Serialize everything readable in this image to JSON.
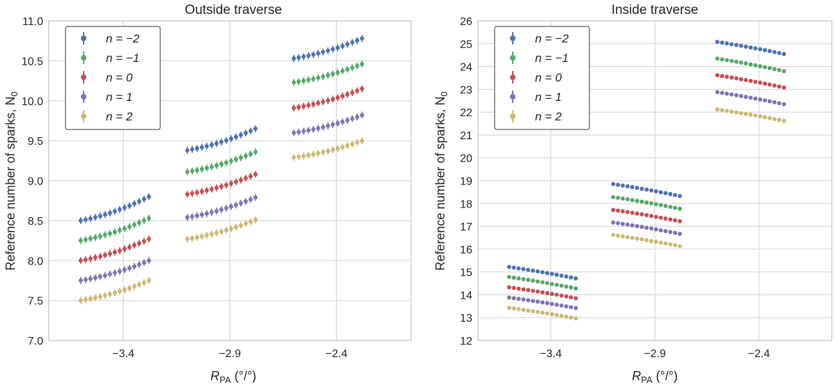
{
  "chart_data": [
    {
      "type": "scatter",
      "title": "Outside traverse",
      "xlabel": "R_PA (°/°)",
      "xlabel_main": "R",
      "xlabel_sub": "PA",
      "xlabel_units": " (°/°)",
      "ylabel": "Reference number of sparks, N_0",
      "ylabel_main": "Reference number of sparks, N",
      "ylabel_sub": "0",
      "xlim": [
        -3.75,
        -2.05
      ],
      "ylim": [
        7.0,
        11.0
      ],
      "xticks": [
        -3.4,
        -2.9,
        -2.4
      ],
      "xtick_labels": [
        "−3.4",
        "−2.9",
        "−2.4"
      ],
      "yticks": [
        7.0,
        7.5,
        8.0,
        8.5,
        9.0,
        9.5,
        10.0,
        10.5,
        11.0
      ],
      "ytick_labels": [
        "7.0",
        "7.5",
        "8.0",
        "8.5",
        "9.0",
        "9.5",
        "10.0",
        "10.5",
        "11.0"
      ],
      "groups": [
        {
          "x_start": -3.6,
          "x_end": -3.28,
          "points": 15
        },
        {
          "x_start": -3.1,
          "x_end": -2.78,
          "points": 15
        },
        {
          "x_start": -2.6,
          "x_end": -2.28,
          "points": 15
        }
      ],
      "legend_position": "top-left",
      "series": [
        {
          "name": "n = −2",
          "color": "#4c72b0",
          "groups": [
            [
              8.5,
              8.8
            ],
            [
              9.38,
              9.65
            ],
            [
              10.53,
              10.78
            ]
          ]
        },
        {
          "name": "n = −1",
          "color": "#55a868",
          "groups": [
            [
              8.25,
              8.53
            ],
            [
              9.11,
              9.36
            ],
            [
              10.23,
              10.46
            ]
          ]
        },
        {
          "name": "n = 0",
          "color": "#c44e52",
          "groups": [
            [
              8.0,
              8.27
            ],
            [
              8.83,
              9.08
            ],
            [
              9.91,
              10.15
            ]
          ]
        },
        {
          "name": "n = 1",
          "color": "#8172b2",
          "groups": [
            [
              7.75,
              8.0
            ],
            [
              8.54,
              8.79
            ],
            [
              9.6,
              9.82
            ]
          ]
        },
        {
          "name": "n = 2",
          "color": "#ccb974",
          "groups": [
            [
              7.5,
              7.75
            ],
            [
              8.27,
              8.51
            ],
            [
              9.29,
              9.5
            ]
          ]
        }
      ]
    },
    {
      "type": "scatter",
      "title": "Inside traverse",
      "xlabel": "R_PA (°/°)",
      "xlabel_main": "R",
      "xlabel_sub": "PA",
      "xlabel_units": " (°/°)",
      "ylabel": "Reference number of sparks, N_0",
      "ylabel_main": "Reference number of sparks, N",
      "ylabel_sub": "0",
      "xlim": [
        -3.75,
        -2.05
      ],
      "ylim": [
        12,
        26
      ],
      "xticks": [
        -3.4,
        -2.9,
        -2.4
      ],
      "xtick_labels": [
        "−3.4",
        "−2.9",
        "−2.4"
      ],
      "yticks": [
        12,
        13,
        14,
        15,
        16,
        17,
        18,
        19,
        20,
        21,
        22,
        23,
        24,
        25,
        26
      ],
      "ytick_labels": [
        "12",
        "13",
        "14",
        "15",
        "16",
        "17",
        "18",
        "19",
        "20",
        "21",
        "22",
        "23",
        "24",
        "25",
        "26"
      ],
      "groups": [
        {
          "x_start": -3.6,
          "x_end": -3.28,
          "points": 15
        },
        {
          "x_start": -3.1,
          "x_end": -2.78,
          "points": 15
        },
        {
          "x_start": -2.6,
          "x_end": -2.28,
          "points": 15
        }
      ],
      "legend_position": "top-left",
      "series": [
        {
          "name": "n = −2",
          "color": "#4c72b0",
          "groups": [
            [
              15.22,
              14.72
            ],
            [
              18.85,
              18.33
            ],
            [
              25.08,
              24.55
            ]
          ]
        },
        {
          "name": "n = −1",
          "color": "#55a868",
          "groups": [
            [
              14.78,
              14.28
            ],
            [
              18.28,
              17.77
            ],
            [
              24.35,
              23.8
            ]
          ]
        },
        {
          "name": "n = 0",
          "color": "#c44e52",
          "groups": [
            [
              14.33,
              13.85
            ],
            [
              17.72,
              17.22
            ],
            [
              23.62,
              23.08
            ]
          ]
        },
        {
          "name": "n = 1",
          "color": "#8172b2",
          "groups": [
            [
              13.88,
              13.42
            ],
            [
              17.17,
              16.67
            ],
            [
              22.88,
              22.35
            ]
          ]
        },
        {
          "name": "n = 2",
          "color": "#ccb974",
          "groups": [
            [
              13.43,
              12.97
            ],
            [
              16.62,
              16.13
            ],
            [
              22.12,
              21.62
            ]
          ]
        }
      ]
    }
  ]
}
